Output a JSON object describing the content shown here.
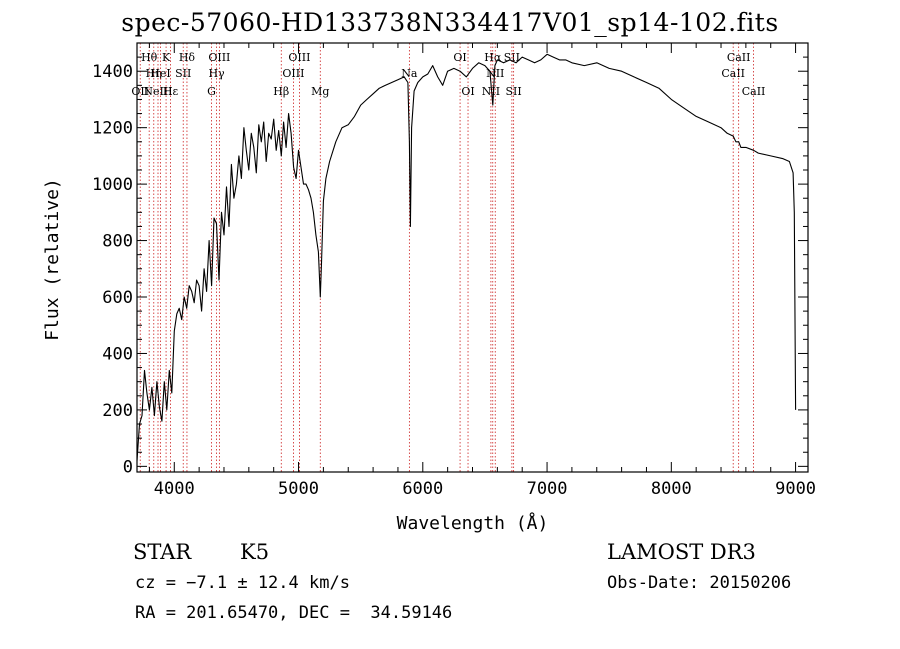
{
  "chart_data": {
    "type": "line",
    "title": "spec-57060-HD133738N334417V01_sp14-102.fits",
    "xlabel": "Wavelength (Å)",
    "ylabel": "Flux (relative)",
    "xlim": [
      3700,
      9100
    ],
    "ylim": [
      -20,
      1500
    ],
    "xticks": [
      4000,
      5000,
      6000,
      7000,
      8000,
      9000
    ],
    "yticks": [
      0,
      200,
      400,
      600,
      800,
      1000,
      1200,
      1400
    ],
    "series": [
      {
        "name": "flux",
        "color": "#000000",
        "x": [
          3700,
          3720,
          3740,
          3760,
          3780,
          3800,
          3820,
          3840,
          3860,
          3880,
          3900,
          3920,
          3940,
          3960,
          3980,
          4000,
          4020,
          4040,
          4060,
          4080,
          4100,
          4120,
          4140,
          4160,
          4180,
          4200,
          4220,
          4240,
          4260,
          4280,
          4300,
          4320,
          4340,
          4360,
          4380,
          4400,
          4420,
          4440,
          4460,
          4480,
          4500,
          4520,
          4540,
          4560,
          4580,
          4600,
          4620,
          4640,
          4660,
          4680,
          4700,
          4720,
          4740,
          4760,
          4780,
          4800,
          4820,
          4840,
          4861,
          4880,
          4900,
          4920,
          4940,
          4960,
          4980,
          5000,
          5020,
          5040,
          5060,
          5080,
          5100,
          5120,
          5140,
          5160,
          5175,
          5185,
          5200,
          5220,
          5250,
          5300,
          5350,
          5400,
          5450,
          5500,
          5550,
          5600,
          5650,
          5700,
          5750,
          5800,
          5850,
          5880,
          5892,
          5900,
          5910,
          5930,
          5960,
          6000,
          6040,
          6080,
          6120,
          6160,
          6200,
          6250,
          6300,
          6350,
          6400,
          6450,
          6500,
          6540,
          6563,
          6580,
          6600,
          6650,
          6700,
          6750,
          6800,
          6850,
          6900,
          6950,
          7000,
          7050,
          7100,
          7150,
          7200,
          7300,
          7400,
          7500,
          7600,
          7700,
          7800,
          7900,
          8000,
          8100,
          8200,
          8300,
          8400,
          8450,
          8498,
          8520,
          8542,
          8560,
          8600,
          8662,
          8700,
          8800,
          8900,
          8950,
          8980,
          8990,
          9000
        ],
        "values": [
          20,
          150,
          180,
          340,
          260,
          200,
          280,
          180,
          300,
          210,
          160,
          300,
          200,
          340,
          260,
          480,
          540,
          560,
          520,
          600,
          560,
          640,
          620,
          580,
          660,
          640,
          550,
          700,
          620,
          800,
          640,
          880,
          860,
          660,
          900,
          820,
          990,
          850,
          1070,
          950,
          1000,
          1100,
          1020,
          1200,
          1120,
          1050,
          1180,
          1130,
          1040,
          1210,
          1150,
          1220,
          1080,
          1180,
          1160,
          1230,
          1120,
          1190,
          1100,
          1220,
          1130,
          1250,
          1180,
          1060,
          1020,
          1120,
          1060,
          1000,
          1000,
          980,
          950,
          900,
          820,
          760,
          600,
          720,
          940,
          1020,
          1080,
          1150,
          1200,
          1210,
          1240,
          1280,
          1300,
          1320,
          1340,
          1350,
          1360,
          1370,
          1380,
          1360,
          1150,
          850,
          1200,
          1330,
          1360,
          1380,
          1390,
          1420,
          1380,
          1350,
          1400,
          1410,
          1400,
          1380,
          1410,
          1430,
          1420,
          1400,
          1280,
          1420,
          1440,
          1430,
          1440,
          1430,
          1450,
          1440,
          1430,
          1440,
          1460,
          1450,
          1440,
          1440,
          1430,
          1420,
          1430,
          1410,
          1400,
          1380,
          1360,
          1340,
          1300,
          1270,
          1240,
          1220,
          1200,
          1180,
          1170,
          1150,
          1150,
          1130,
          1130,
          1120,
          1110,
          1100,
          1090,
          1080,
          1040,
          900,
          200
        ]
      }
    ],
    "lines": [
      {
        "wave": 3726,
        "label": "OII",
        "row": 3
      },
      {
        "wave": 3798,
        "label": "Hθ",
        "row": 1
      },
      {
        "wave": 3835,
        "label": "Hη",
        "row": 2
      },
      {
        "wave": 3869,
        "label": "NeIII",
        "row": 3
      },
      {
        "wave": 3889,
        "label": "HeI",
        "row": 2
      },
      {
        "wave": 3934,
        "label": "K",
        "row": 1
      },
      {
        "wave": 3970,
        "label": "Hε",
        "row": 3
      },
      {
        "wave": 4072,
        "label": "SII",
        "row": 2
      },
      {
        "wave": 4102,
        "label": "Hδ",
        "row": 1
      },
      {
        "wave": 4300,
        "label": "G",
        "row": 3
      },
      {
        "wave": 4340,
        "label": "Hγ",
        "row": 2
      },
      {
        "wave": 4363,
        "label": "OIII",
        "row": 1
      },
      {
        "wave": 4861,
        "label": "Hβ",
        "row": 3
      },
      {
        "wave": 4959,
        "label": "OIII",
        "row": 2
      },
      {
        "wave": 5007,
        "label": "OIII",
        "row": 1
      },
      {
        "wave": 5175,
        "label": "Mg",
        "row": 3
      },
      {
        "wave": 5892,
        "label": "Na",
        "row": 2
      },
      {
        "wave": 6300,
        "label": "OI",
        "row": 1
      },
      {
        "wave": 6364,
        "label": "OI",
        "row": 3
      },
      {
        "wave": 6548,
        "label": "NII",
        "row": 3
      },
      {
        "wave": 6563,
        "label": "Hα",
        "row": 1
      },
      {
        "wave": 6583,
        "label": "NII",
        "row": 2
      },
      {
        "wave": 6717,
        "label": "SII",
        "row": 1
      },
      {
        "wave": 6731,
        "label": "SII",
        "row": 3
      },
      {
        "wave": 8498,
        "label": "CaII",
        "row": 2
      },
      {
        "wave": 8542,
        "label": "CaII",
        "row": 1
      },
      {
        "wave": 8662,
        "label": "CaII",
        "row": 3
      }
    ]
  },
  "info": {
    "obj_type": "STAR",
    "subclass": "K5",
    "survey": "LAMOST DR3",
    "cz": "cz = −7.1 ± 12.4 km/s",
    "obs_date": "Obs-Date: 20150206",
    "coords": "RA = 201.65470, DEC =  34.59146"
  }
}
